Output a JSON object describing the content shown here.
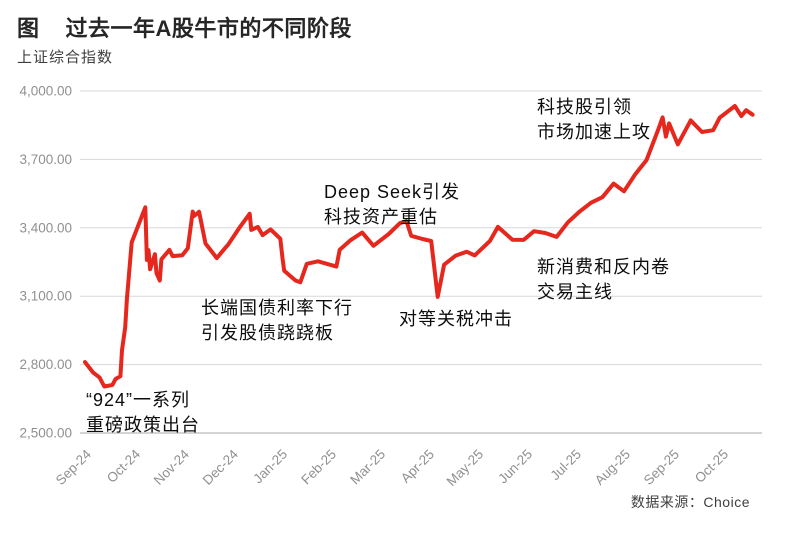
{
  "header": {
    "figure_label": "图",
    "title": "过去一年A股牛市的不同阶段",
    "subtitle": "上证综合指数"
  },
  "footer": {
    "source": "数据来源：Choice"
  },
  "chart_data": {
    "type": "line",
    "title": "过去一年A股牛市的不同阶段",
    "ylabel": "上证综合指数",
    "xlabel": "",
    "legend": "none",
    "grid": "horizontal",
    "line_color": "#e5271d",
    "grid_color": "#d8d8d8",
    "axis_color": "#a8a8a8",
    "tick_text_color": "#909090",
    "y_axis": {
      "min": 2500,
      "max": 4000,
      "ticks": [
        {
          "value": 4000,
          "label": "4,000.00"
        },
        {
          "value": 3700,
          "label": "3,700.00"
        },
        {
          "value": 3400,
          "label": "3,400.00"
        },
        {
          "value": 3100,
          "label": "3,100.00"
        },
        {
          "value": 2800,
          "label": "2,800.00"
        },
        {
          "value": 2500,
          "label": "2,500.00"
        }
      ]
    },
    "x_axis": {
      "ticks": [
        "Sep-24",
        "Oct-24",
        "Nov-24",
        "Dec-24",
        "Jan-25",
        "Feb-25",
        "Mar-25",
        "Apr-25",
        "May-25",
        "Jun-25",
        "Jul-25",
        "Aug-25",
        "Sep-25",
        "Oct-25"
      ]
    },
    "series": [
      {
        "name": "上证综合指数",
        "points": [
          [
            "2024-09-01",
            2811
          ],
          [
            "2024-09-06",
            2766
          ],
          [
            "2024-09-10",
            2744
          ],
          [
            "2024-09-13",
            2704
          ],
          [
            "2024-09-18",
            2711
          ],
          [
            "2024-09-20",
            2737
          ],
          [
            "2024-09-23",
            2749
          ],
          [
            "2024-09-24",
            2863
          ],
          [
            "2024-09-26",
            2963
          ],
          [
            "2024-09-27",
            3088
          ],
          [
            "2024-09-30",
            3336
          ],
          [
            "2024-10-08",
            3490
          ],
          [
            "2024-10-09",
            3259
          ],
          [
            "2024-10-10",
            3302
          ],
          [
            "2024-10-11",
            3218
          ],
          [
            "2024-10-14",
            3284
          ],
          [
            "2024-10-15",
            3201
          ],
          [
            "2024-10-17",
            3169
          ],
          [
            "2024-10-18",
            3262
          ],
          [
            "2024-10-23",
            3303
          ],
          [
            "2024-10-25",
            3276
          ],
          [
            "2024-10-31",
            3280
          ],
          [
            "2024-11-04",
            3310
          ],
          [
            "2024-11-07",
            3471
          ],
          [
            "2024-11-08",
            3452
          ],
          [
            "2024-11-11",
            3470
          ],
          [
            "2024-11-15",
            3331
          ],
          [
            "2024-11-22",
            3267
          ],
          [
            "2024-11-27",
            3310
          ],
          [
            "2024-11-29",
            3326
          ],
          [
            "2024-12-06",
            3404
          ],
          [
            "2024-12-12",
            3462
          ],
          [
            "2024-12-13",
            3391
          ],
          [
            "2024-12-17",
            3404
          ],
          [
            "2024-12-20",
            3368
          ],
          [
            "2024-12-25",
            3393
          ],
          [
            "2024-12-31",
            3352
          ],
          [
            "2025-01-02",
            3263
          ],
          [
            "2025-01-03",
            3212
          ],
          [
            "2025-01-10",
            3169
          ],
          [
            "2025-01-13",
            3161
          ],
          [
            "2025-01-17",
            3242
          ],
          [
            "2025-01-24",
            3253
          ],
          [
            "2025-02-05",
            3230
          ],
          [
            "2025-02-07",
            3304
          ],
          [
            "2025-02-14",
            3347
          ],
          [
            "2025-02-21",
            3379
          ],
          [
            "2025-02-28",
            3321
          ],
          [
            "2025-03-07",
            3373
          ],
          [
            "2025-03-14",
            3420
          ],
          [
            "2025-03-18",
            3430
          ],
          [
            "2025-03-21",
            3365
          ],
          [
            "2025-03-28",
            3351
          ],
          [
            "2025-04-03",
            3342
          ],
          [
            "2025-04-07",
            3097
          ],
          [
            "2025-04-11",
            3238
          ],
          [
            "2025-04-18",
            3277
          ],
          [
            "2025-04-25",
            3295
          ],
          [
            "2025-04-30",
            3279
          ],
          [
            "2025-05-09",
            3342
          ],
          [
            "2025-05-14",
            3404
          ],
          [
            "2025-05-23",
            3348
          ],
          [
            "2025-05-30",
            3347
          ],
          [
            "2025-06-06",
            3385
          ],
          [
            "2025-06-13",
            3377
          ],
          [
            "2025-06-20",
            3360
          ],
          [
            "2025-06-27",
            3424
          ],
          [
            "2025-07-04",
            3472
          ],
          [
            "2025-07-11",
            3510
          ],
          [
            "2025-07-18",
            3534
          ],
          [
            "2025-07-25",
            3594
          ],
          [
            "2025-08-01",
            3560
          ],
          [
            "2025-08-08",
            3635
          ],
          [
            "2025-08-15",
            3697
          ],
          [
            "2025-08-22",
            3826
          ],
          [
            "2025-08-25",
            3884
          ],
          [
            "2025-08-27",
            3800
          ],
          [
            "2025-08-29",
            3858
          ],
          [
            "2025-09-04",
            3766
          ],
          [
            "2025-09-12",
            3871
          ],
          [
            "2025-09-19",
            3820
          ],
          [
            "2025-09-26",
            3828
          ],
          [
            "2025-09-30",
            3883
          ],
          [
            "2025-10-09",
            3934
          ],
          [
            "2025-10-13",
            3890
          ],
          [
            "2025-10-16",
            3916
          ],
          [
            "2025-10-20",
            3896
          ]
        ]
      }
    ],
    "annotations": [
      {
        "lines": [
          "“924”一系列",
          "重磅政策出台"
        ]
      },
      {
        "lines": [
          "长端国债利率下行",
          "引发股债跷跷板"
        ]
      },
      {
        "lines": [
          "Deep Seek引发",
          "科技资产重估"
        ]
      },
      {
        "lines": [
          "对等关税冲击"
        ]
      },
      {
        "lines": [
          "新消费和反内卷",
          "交易主线"
        ]
      },
      {
        "lines": [
          "科技股引领",
          "市场加速上攻"
        ]
      }
    ]
  }
}
